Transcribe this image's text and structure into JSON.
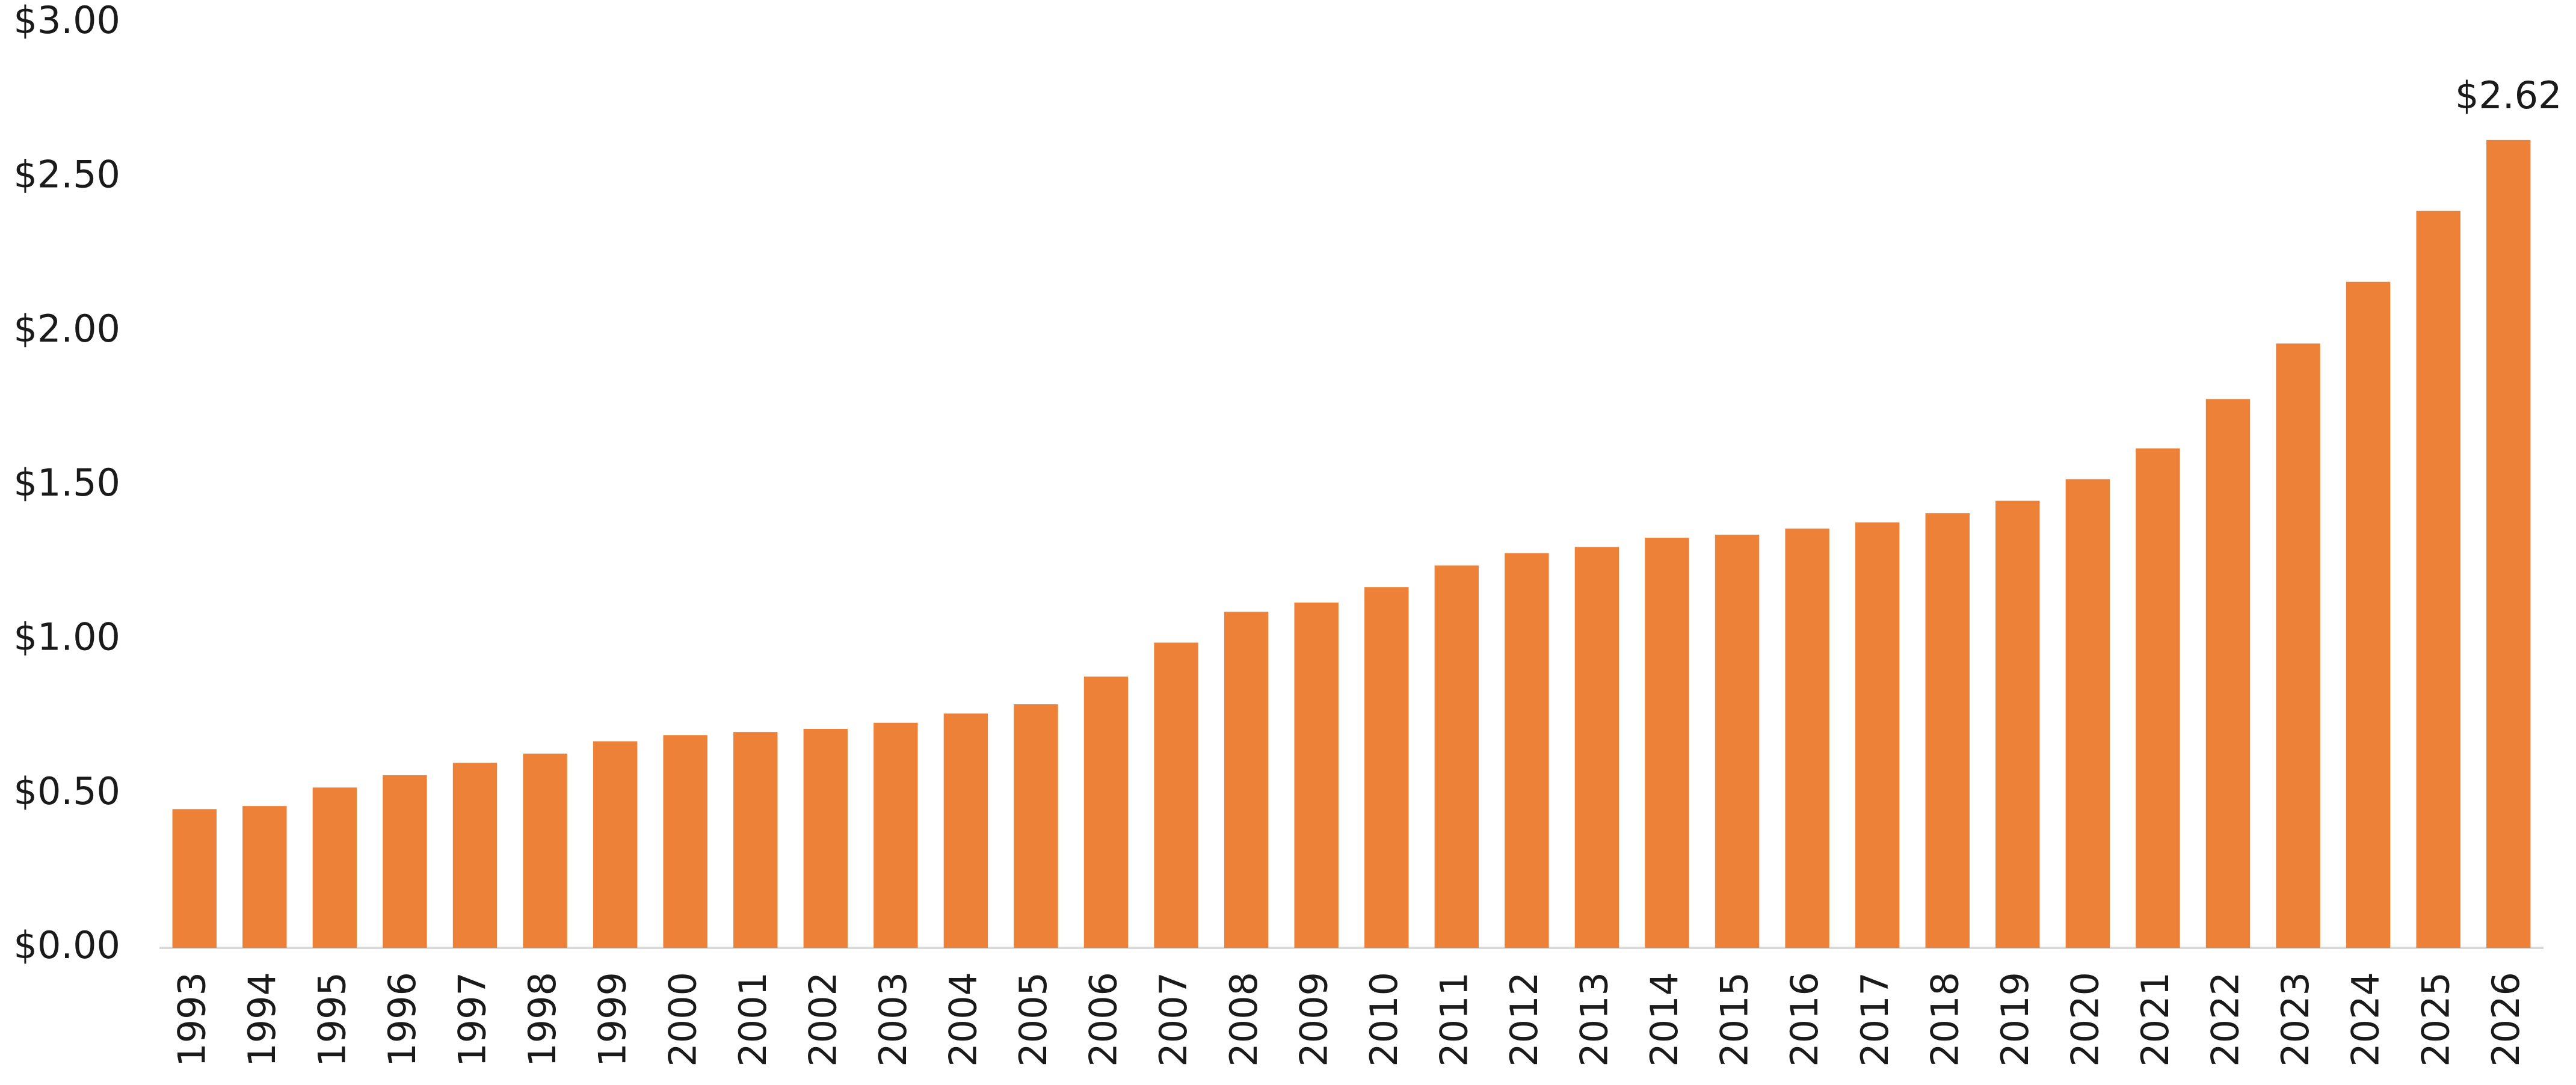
{
  "chart_data": {
    "type": "bar",
    "categories": [
      "1993",
      "1994",
      "1995",
      "1996",
      "1997",
      "1998",
      "1999",
      "2000",
      "2001",
      "2002",
      "2003",
      "2004",
      "2005",
      "2006",
      "2007",
      "2008",
      "2009",
      "2010",
      "2011",
      "2012",
      "2013",
      "2014",
      "2015",
      "2016",
      "2017",
      "2018",
      "2019",
      "2020",
      "2021",
      "2022",
      "2023",
      "2024",
      "2025",
      "2026"
    ],
    "values": [
      0.45,
      0.46,
      0.52,
      0.56,
      0.6,
      0.63,
      0.67,
      0.69,
      0.7,
      0.71,
      0.73,
      0.76,
      0.79,
      0.88,
      0.99,
      1.09,
      1.12,
      1.17,
      1.24,
      1.28,
      1.3,
      1.33,
      1.34,
      1.36,
      1.38,
      1.41,
      1.45,
      1.52,
      1.62,
      1.78,
      1.96,
      2.16,
      2.39,
      2.62
    ],
    "value_labels": [
      null,
      null,
      null,
      null,
      null,
      null,
      null,
      null,
      null,
      null,
      null,
      null,
      null,
      null,
      null,
      null,
      null,
      null,
      null,
      null,
      null,
      null,
      null,
      null,
      null,
      null,
      null,
      null,
      null,
      null,
      null,
      null,
      null,
      "$2.62"
    ],
    "color": "#ed8137",
    "ylim": [
      0,
      3
    ],
    "yticks": [
      {
        "value": 0,
        "label": "$0.00"
      },
      {
        "value": 0.5,
        "label": "$0.50"
      },
      {
        "value": 1,
        "label": "$1.00"
      },
      {
        "value": 1.5,
        "label": "$1.50"
      },
      {
        "value": 2,
        "label": "$2.00"
      },
      {
        "value": 2.5,
        "label": "$2.50"
      },
      {
        "value": 3,
        "label": "$3.00"
      }
    ],
    "grid": false
  }
}
